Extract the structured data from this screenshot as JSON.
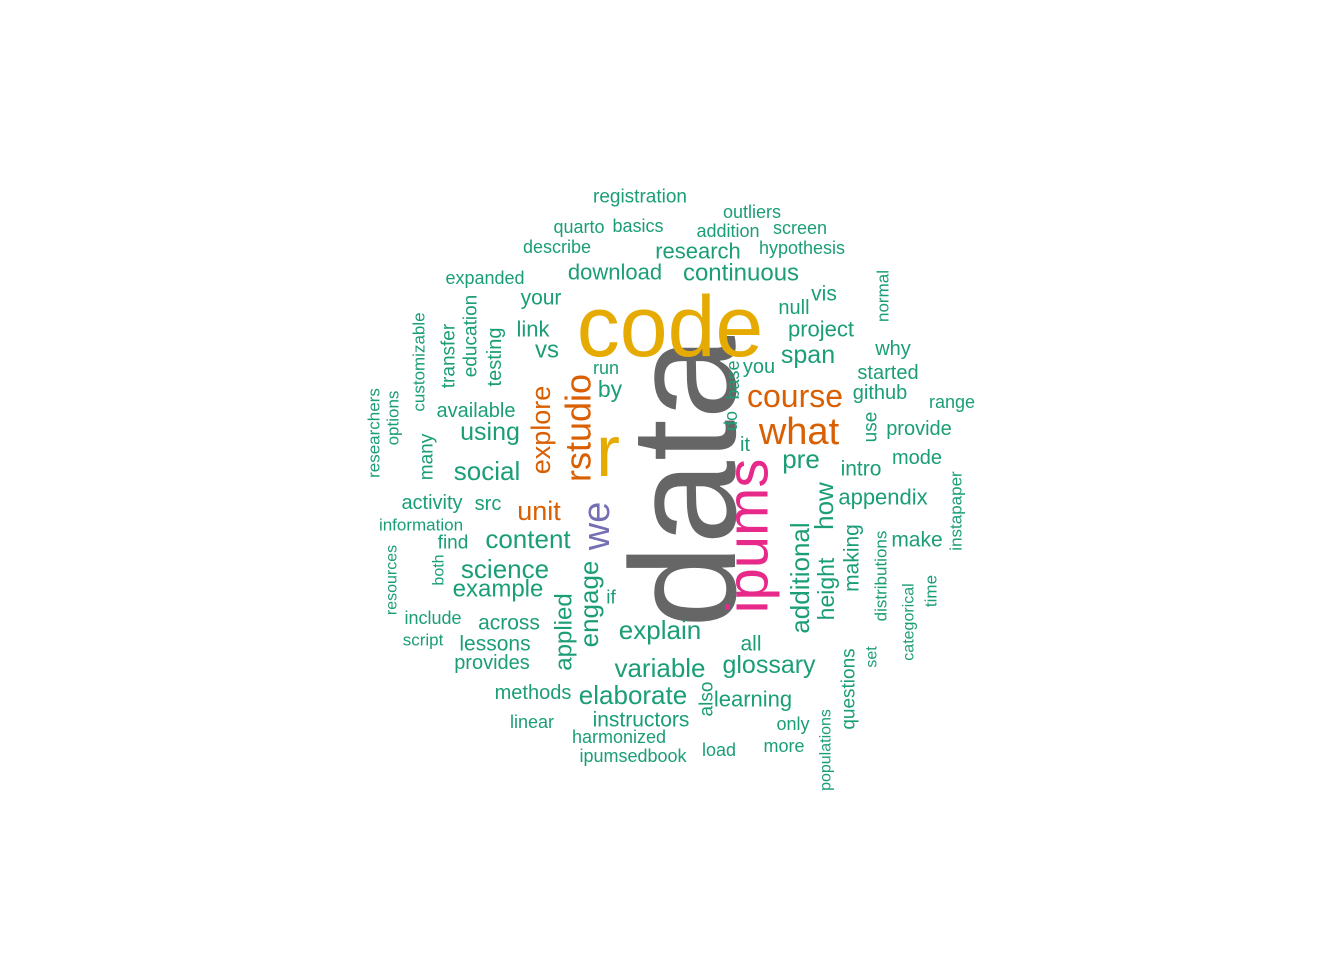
{
  "chart_data": {
    "type": "wordcloud",
    "title": "",
    "colors": {
      "teal": "#1b9e77",
      "orange": "#d95f02",
      "purple": "#7570b3",
      "pink": "#e7298a",
      "gold": "#e6ab02",
      "gray": "#666666"
    },
    "words": [
      {
        "text": "data",
        "color": "gray"
      },
      {
        "text": "code",
        "color": "gold"
      },
      {
        "text": "r",
        "color": "gold"
      },
      {
        "text": "ipums",
        "color": "pink"
      },
      {
        "text": "we",
        "color": "purple"
      },
      {
        "text": "rstudio",
        "color": "orange"
      },
      {
        "text": "what",
        "color": "orange"
      },
      {
        "text": "course",
        "color": "orange"
      },
      {
        "text": "explore",
        "color": "orange"
      },
      {
        "text": "unit",
        "color": "orange"
      },
      {
        "text": "registration",
        "color": "teal"
      },
      {
        "text": "outliers",
        "color": "teal"
      },
      {
        "text": "quarto",
        "color": "teal"
      },
      {
        "text": "basics",
        "color": "teal"
      },
      {
        "text": "addition",
        "color": "teal"
      },
      {
        "text": "screen",
        "color": "teal"
      },
      {
        "text": "describe",
        "color": "teal"
      },
      {
        "text": "research",
        "color": "teal"
      },
      {
        "text": "hypothesis",
        "color": "teal"
      },
      {
        "text": "download",
        "color": "teal"
      },
      {
        "text": "continuous",
        "color": "teal"
      },
      {
        "text": "expanded",
        "color": "teal"
      },
      {
        "text": "your",
        "color": "teal"
      },
      {
        "text": "vis",
        "color": "teal"
      },
      {
        "text": "normal",
        "color": "teal"
      },
      {
        "text": "null",
        "color": "teal"
      },
      {
        "text": "project",
        "color": "teal"
      },
      {
        "text": "link",
        "color": "teal"
      },
      {
        "text": "education",
        "color": "teal"
      },
      {
        "text": "customizable",
        "color": "teal"
      },
      {
        "text": "transfer",
        "color": "teal"
      },
      {
        "text": "testing",
        "color": "teal"
      },
      {
        "text": "vs",
        "color": "teal"
      },
      {
        "text": "span",
        "color": "teal"
      },
      {
        "text": "why",
        "color": "teal"
      },
      {
        "text": "run",
        "color": "teal"
      },
      {
        "text": "you",
        "color": "teal"
      },
      {
        "text": "started",
        "color": "teal"
      },
      {
        "text": "base",
        "color": "teal"
      },
      {
        "text": "by",
        "color": "teal"
      },
      {
        "text": "github",
        "color": "teal"
      },
      {
        "text": "range",
        "color": "teal"
      },
      {
        "text": "researchers",
        "color": "teal"
      },
      {
        "text": "options",
        "color": "teal"
      },
      {
        "text": "available",
        "color": "teal"
      },
      {
        "text": "do",
        "color": "teal"
      },
      {
        "text": "using",
        "color": "teal"
      },
      {
        "text": "use",
        "color": "teal"
      },
      {
        "text": "provide",
        "color": "teal"
      },
      {
        "text": "many",
        "color": "teal"
      },
      {
        "text": "it",
        "color": "teal"
      },
      {
        "text": "pre",
        "color": "teal"
      },
      {
        "text": "mode",
        "color": "teal"
      },
      {
        "text": "social",
        "color": "teal"
      },
      {
        "text": "intro",
        "color": "teal"
      },
      {
        "text": "instapaper",
        "color": "teal"
      },
      {
        "text": "how",
        "color": "teal"
      },
      {
        "text": "appendix",
        "color": "teal"
      },
      {
        "text": "activity",
        "color": "teal"
      },
      {
        "text": "src",
        "color": "teal"
      },
      {
        "text": "information",
        "color": "teal"
      },
      {
        "text": "make",
        "color": "teal"
      },
      {
        "text": "find",
        "color": "teal"
      },
      {
        "text": "content",
        "color": "teal"
      },
      {
        "text": "additional",
        "color": "teal"
      },
      {
        "text": "making",
        "color": "teal"
      },
      {
        "text": "distributions",
        "color": "teal"
      },
      {
        "text": "resources",
        "color": "teal"
      },
      {
        "text": "both",
        "color": "teal"
      },
      {
        "text": "science",
        "color": "teal"
      },
      {
        "text": "engage",
        "color": "teal"
      },
      {
        "text": "height",
        "color": "teal"
      },
      {
        "text": "categorical",
        "color": "teal"
      },
      {
        "text": "time",
        "color": "teal"
      },
      {
        "text": "example",
        "color": "teal"
      },
      {
        "text": "if",
        "color": "teal"
      },
      {
        "text": "include",
        "color": "teal"
      },
      {
        "text": "applied",
        "color": "teal"
      },
      {
        "text": "across",
        "color": "teal"
      },
      {
        "text": "explain",
        "color": "teal"
      },
      {
        "text": "script",
        "color": "teal"
      },
      {
        "text": "lessons",
        "color": "teal"
      },
      {
        "text": "all",
        "color": "teal"
      },
      {
        "text": "set",
        "color": "teal"
      },
      {
        "text": "provides",
        "color": "teal"
      },
      {
        "text": "variable",
        "color": "teal"
      },
      {
        "text": "glossary",
        "color": "teal"
      },
      {
        "text": "questions",
        "color": "teal"
      },
      {
        "text": "methods",
        "color": "teal"
      },
      {
        "text": "elaborate",
        "color": "teal"
      },
      {
        "text": "learning",
        "color": "teal"
      },
      {
        "text": "also",
        "color": "teal"
      },
      {
        "text": "linear",
        "color": "teal"
      },
      {
        "text": "instructors",
        "color": "teal"
      },
      {
        "text": "only",
        "color": "teal"
      },
      {
        "text": "harmonized",
        "color": "teal"
      },
      {
        "text": "populations",
        "color": "teal"
      },
      {
        "text": "load",
        "color": "teal"
      },
      {
        "text": "more",
        "color": "teal"
      },
      {
        "text": "ipumsedbook",
        "color": "teal"
      }
    ]
  }
}
